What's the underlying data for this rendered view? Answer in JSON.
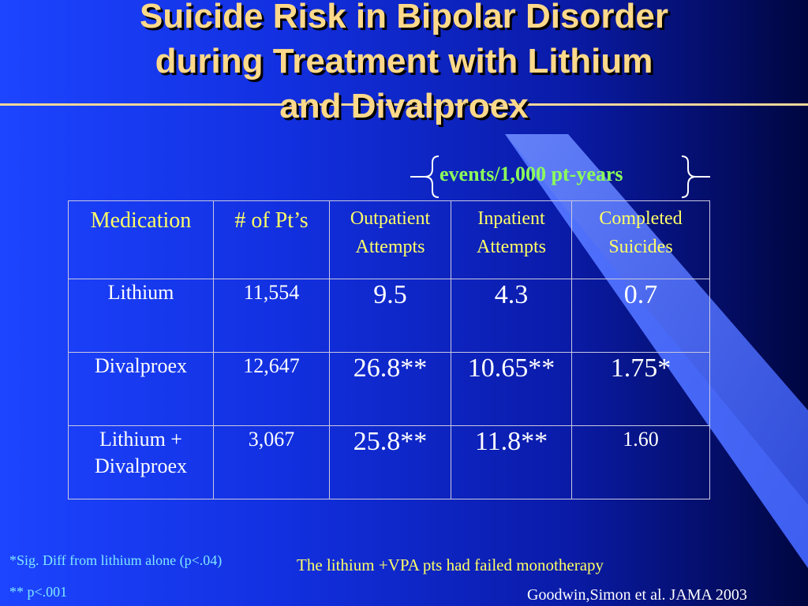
{
  "slide": {
    "title_lines": [
      "Suicide Risk in Bipolar Disorder",
      "during Treatment with Lithium",
      "and Divalproex"
    ],
    "units_label": "events/1,000 pt-years"
  },
  "table": {
    "headers": {
      "medication": "Medication",
      "patients": "# of Pt’s",
      "outpatient": [
        "Outpatient",
        "Attempts"
      ],
      "inpatient": [
        "Inpatient",
        "Attempts"
      ],
      "completed": [
        "Completed",
        "Suicides"
      ]
    },
    "rows": [
      {
        "medication": [
          "Lithium"
        ],
        "patients": "11,554",
        "outpatient": "9.5",
        "inpatient": "4.3",
        "completed": "0.7"
      },
      {
        "medication": [
          "Divalproex"
        ],
        "patients": "12,647",
        "outpatient": "26.8**",
        "inpatient": "10.65**",
        "completed": "1.75*"
      },
      {
        "medication": [
          "Lithium +",
          "Divalproex"
        ],
        "patients": "3,067",
        "outpatient": "25.8**",
        "inpatient": "11.8**",
        "completed": "1.60"
      }
    ]
  },
  "footnotes": {
    "sig1": "*Sig. Diff from lithium alone (p<.04)",
    "sig2": "** p<.001",
    "note": "The lithium +VPA pts had failed monotherapy",
    "citation": "Goodwin,Simon et al. JAMA 2003"
  },
  "colors": {
    "title": "#ffd98a",
    "header_text": "#ffff66",
    "units": "#8cff5a",
    "footnote": "#7fe8ff",
    "rule": "#f2d79a"
  }
}
